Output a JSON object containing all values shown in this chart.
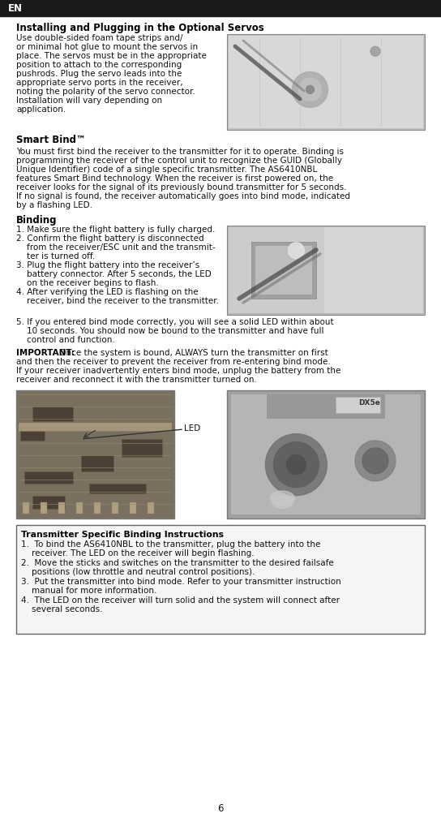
{
  "page_bg": "#ffffff",
  "header_bg": "#1a1a1a",
  "header_text": "EN",
  "header_text_color": "#ffffff",
  "footer_number": "6",
  "title1": "Installing and Plugging in the Optional Servos",
  "para1_lines": [
    "Use double-sided foam tape strips and/",
    "or minimal hot glue to mount the servos in",
    "place. The servos must be in the appropriate",
    "position to attach to the corresponding",
    "pushrods. Plug the servo leads into the",
    "appropriate servo ports in the receiver,",
    "noting the polarity of the servo connector.",
    "Installation will vary depending on",
    "application."
  ],
  "title2": "Smart Bind™",
  "para2_lines": [
    "You must first bind the receiver to the transmitter for it to operate. Binding is",
    "programming the receiver of the control unit to recognize the GUID (Globally",
    "Unique Identifier) code of a single specific transmitter. The AS6410NBL",
    "features Smart Bind technology. When the receiver is first powered on, the",
    "receiver looks for the signal of its previously bound transmitter for 5 seconds.",
    "If no signal is found, the receiver automatically goes into bind mode, indicated",
    "by a flashing LED."
  ],
  "title3": "Binding",
  "binding_items": [
    [
      "1. Make sure the flight battery is fully charged."
    ],
    [
      "2. Confirm the flight battery is disconnected",
      "    from the receiver/ESC unit and the transmit-",
      "    ter is turned off."
    ],
    [
      "3. Plug the flight battery into the receiver’s",
      "    battery connector. After 5 seconds, the LED",
      "    on the receiver begins to flash."
    ],
    [
      "4. After verifying the LED is flashing on the",
      "    receiver, bind the receiver to the transmitter."
    ],
    [
      "5. If you entered bind mode correctly, you will see a solid LED within about",
      "    10 seconds. You should now be bound to the transmitter and have full",
      "    control and function."
    ]
  ],
  "important_bold": "IMPORTANT:",
  "important_rest_lines": [
    " Once the system is bound, ALWAYS turn the transmitter on first",
    "and then the receiver to prevent the receiver from re-entering bind mode.",
    "If your receiver inadvertently enters bind mode, unplug the battery from the",
    "receiver and reconnect it with the transmitter turned on."
  ],
  "led_label": "LED",
  "title4_bold": "Transmitter Specific Binding Instructions",
  "binding2_items": [
    [
      "1.  To bind the AS6410NBL to the transmitter, plug the battery into the",
      "    receiver. The LED on the receiver will begin flashing."
    ],
    [
      "2.  Move the sticks and switches on the transmitter to the desired failsafe",
      "    positions (low throttle and neutral control positions)."
    ],
    [
      "3.  Put the transmitter into bind mode. Refer to your transmitter instruction",
      "    manual for more information."
    ],
    [
      "4.  The LED on the receiver will turn solid and the system will connect after",
      "    several seconds."
    ]
  ],
  "text_color": "#111111",
  "bold_color": "#000000",
  "fs_title": 8.5,
  "fs_body": 7.5,
  "fs_header": 8.5,
  "fs_footer": 8.5,
  "lh": 11.0
}
